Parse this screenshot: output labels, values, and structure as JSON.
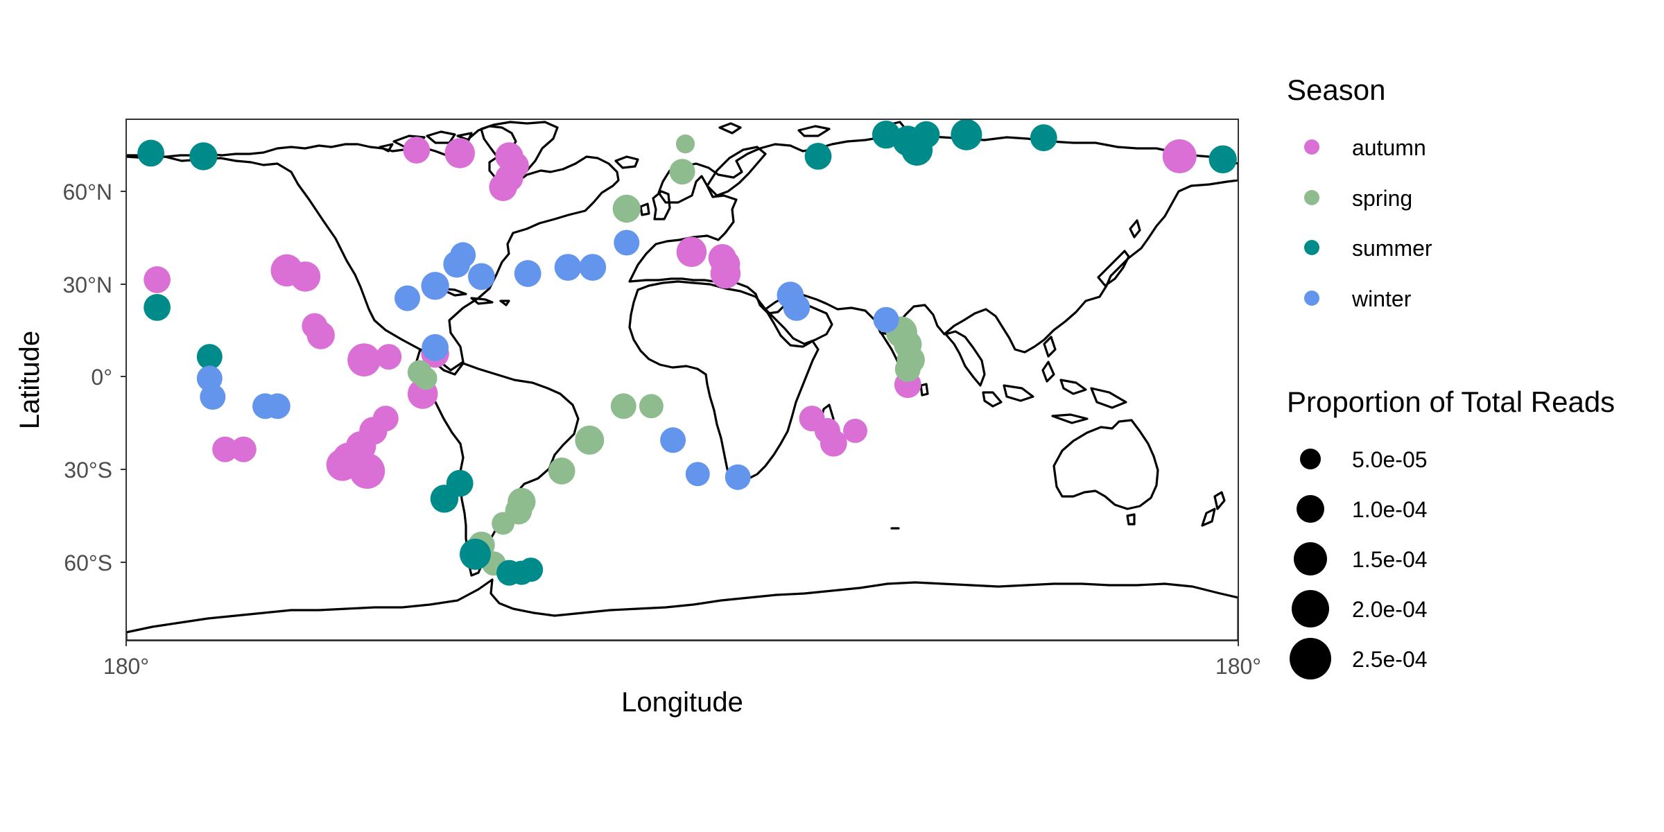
{
  "axes": {
    "xlabel": "Longitude",
    "ylabel": "Latitude",
    "x_ticks": [
      {
        "lon": -180,
        "label": "180°"
      },
      {
        "lon": 180,
        "label": "180°"
      }
    ],
    "y_ticks": [
      {
        "lat": 60,
        "label": "60°N"
      },
      {
        "lat": 30,
        "label": "30°N"
      },
      {
        "lat": 0,
        "label": "0°"
      },
      {
        "lat": -30,
        "label": "30°S"
      },
      {
        "lat": -60,
        "label": "60°S"
      }
    ],
    "xlim": [
      -180,
      180
    ],
    "ylim": [
      -85,
      84
    ]
  },
  "legend": {
    "color_title": "Season",
    "size_title": "Proportion of Total Reads",
    "seasons": [
      {
        "key": "autumn",
        "label": "autumn",
        "color": "#DA70D6"
      },
      {
        "key": "spring",
        "label": "spring",
        "color": "#8FBC8F"
      },
      {
        "key": "summer",
        "label": "summer",
        "color": "#008B8B"
      },
      {
        "key": "winter",
        "label": "winter",
        "color": "#6495ED"
      }
    ],
    "sizes": [
      {
        "value": 5e-05,
        "label": "5.0e-05"
      },
      {
        "value": 0.0001,
        "label": "1.0e-04"
      },
      {
        "value": 0.00015,
        "label": "1.5e-04"
      },
      {
        "value": 0.0002,
        "label": "2.0e-04"
      },
      {
        "value": 0.00025,
        "label": "2.5e-04"
      }
    ],
    "point_color": "#000000"
  },
  "chart_data": {
    "type": "scatter",
    "xlabel": "Longitude",
    "ylabel": "Latitude",
    "xlim": [
      -180,
      180
    ],
    "ylim": [
      -85,
      84
    ],
    "grid": false,
    "legend_position": "right",
    "basemap": "world coastline outline",
    "points": [
      {
        "lon": -170,
        "lat": 32,
        "season": "autumn",
        "reads": 7e-05
      },
      {
        "lon": -128,
        "lat": 35,
        "season": "autumn",
        "reads": 0.00012
      },
      {
        "lon": -122,
        "lat": 33,
        "season": "autumn",
        "reads": 0.0001
      },
      {
        "lon": -119,
        "lat": 17,
        "season": "autumn",
        "reads": 6e-05
      },
      {
        "lon": -117,
        "lat": 14,
        "season": "autumn",
        "reads": 8e-05
      },
      {
        "lon": -103,
        "lat": 6,
        "season": "autumn",
        "reads": 0.00013
      },
      {
        "lon": -95,
        "lat": 7,
        "season": "autumn",
        "reads": 6e-05
      },
      {
        "lon": -80,
        "lat": 8,
        "season": "autumn",
        "reads": 8e-05
      },
      {
        "lon": -84,
        "lat": -5,
        "season": "autumn",
        "reads": 0.0001
      },
      {
        "lon": -96,
        "lat": -13,
        "season": "autumn",
        "reads": 6e-05
      },
      {
        "lon": -100,
        "lat": -17,
        "season": "autumn",
        "reads": 8e-05
      },
      {
        "lon": -104,
        "lat": -22,
        "season": "autumn",
        "reads": 0.0001
      },
      {
        "lon": -108,
        "lat": -26,
        "season": "autumn",
        "reads": 0.00012
      },
      {
        "lon": -102,
        "lat": -30,
        "season": "autumn",
        "reads": 0.00016
      },
      {
        "lon": -110,
        "lat": -28,
        "season": "autumn",
        "reads": 0.00012
      },
      {
        "lon": -148,
        "lat": -23,
        "season": "autumn",
        "reads": 6e-05
      },
      {
        "lon": -142,
        "lat": -23,
        "season": "autumn",
        "reads": 6e-05
      },
      {
        "lon": -86,
        "lat": 74,
        "season": "autumn",
        "reads": 7e-05
      },
      {
        "lon": -72,
        "lat": 73,
        "season": "autumn",
        "reads": 0.0001
      },
      {
        "lon": -56,
        "lat": 72,
        "season": "autumn",
        "reads": 8e-05
      },
      {
        "lon": -54,
        "lat": 69,
        "season": "autumn",
        "reads": 7e-05
      },
      {
        "lon": -56,
        "lat": 65,
        "season": "autumn",
        "reads": 8e-05
      },
      {
        "lon": -58,
        "lat": 62,
        "season": "autumn",
        "reads": 8e-05
      },
      {
        "lon": 3,
        "lat": 41,
        "season": "autumn",
        "reads": 0.0001
      },
      {
        "lon": 13,
        "lat": 39,
        "season": "autumn",
        "reads": 8e-05
      },
      {
        "lon": 14,
        "lat": 37,
        "season": "autumn",
        "reads": 9e-05
      },
      {
        "lon": 14,
        "lat": 34,
        "season": "autumn",
        "reads": 0.0001
      },
      {
        "lon": 42,
        "lat": -13,
        "season": "autumn",
        "reads": 6e-05
      },
      {
        "lon": 47,
        "lat": -17,
        "season": "autumn",
        "reads": 6e-05
      },
      {
        "lon": 56,
        "lat": -17,
        "season": "autumn",
        "reads": 5e-05
      },
      {
        "lon": 49,
        "lat": -21,
        "season": "autumn",
        "reads": 7e-05
      },
      {
        "lon": 73,
        "lat": -2,
        "season": "autumn",
        "reads": 7e-05
      },
      {
        "lon": 161,
        "lat": 72,
        "season": "autumn",
        "reads": 0.00014
      },
      {
        "lon": -85,
        "lat": 2,
        "season": "spring",
        "reads": 5e-05
      },
      {
        "lon": -83,
        "lat": 0,
        "season": "spring",
        "reads": 4e-05
      },
      {
        "lon": -30,
        "lat": -20,
        "season": "spring",
        "reads": 9e-05
      },
      {
        "lon": -39,
        "lat": -30,
        "season": "spring",
        "reads": 7e-05
      },
      {
        "lon": -52,
        "lat": -40,
        "season": "spring",
        "reads": 8e-05
      },
      {
        "lon": -53,
        "lat": -43,
        "season": "spring",
        "reads": 7e-05
      },
      {
        "lon": -58,
        "lat": -47,
        "season": "spring",
        "reads": 4e-05
      },
      {
        "lon": -65,
        "lat": -54,
        "season": "spring",
        "reads": 7e-05
      },
      {
        "lon": -61,
        "lat": -60,
        "season": "spring",
        "reads": 5e-05
      },
      {
        "lon": -18,
        "lat": 55,
        "season": "spring",
        "reads": 8e-05
      },
      {
        "lon": 0,
        "lat": 67,
        "season": "spring",
        "reads": 6e-05
      },
      {
        "lon": 1,
        "lat": 76,
        "season": "spring",
        "reads": 2e-05
      },
      {
        "lon": -19,
        "lat": -9,
        "season": "spring",
        "reads": 6e-05
      },
      {
        "lon": -10,
        "lat": -9,
        "season": "spring",
        "reads": 5e-05
      },
      {
        "lon": 71,
        "lat": 15,
        "season": "spring",
        "reads": 0.00011
      },
      {
        "lon": 73,
        "lat": 11,
        "season": "spring",
        "reads": 8e-05
      },
      {
        "lon": 74,
        "lat": 6,
        "season": "spring",
        "reads": 8e-05
      },
      {
        "lon": 73,
        "lat": 3,
        "season": "spring",
        "reads": 6e-05
      },
      {
        "lon": -172,
        "lat": 73,
        "season": "summer",
        "reads": 7e-05
      },
      {
        "lon": -155,
        "lat": 72,
        "season": "summer",
        "reads": 8e-05
      },
      {
        "lon": -170,
        "lat": 23,
        "season": "summer",
        "reads": 7e-05
      },
      {
        "lon": -153,
        "lat": 7,
        "season": "summer",
        "reads": 6e-05
      },
      {
        "lon": -77,
        "lat": -39,
        "season": "summer",
        "reads": 8e-05
      },
      {
        "lon": -72,
        "lat": -34,
        "season": "summer",
        "reads": 7e-05
      },
      {
        "lon": -67,
        "lat": -57,
        "season": "summer",
        "reads": 0.00011
      },
      {
        "lon": -56,
        "lat": -63,
        "season": "summer",
        "reads": 6e-05
      },
      {
        "lon": -52,
        "lat": -63,
        "season": "summer",
        "reads": 5e-05
      },
      {
        "lon": -49,
        "lat": -62,
        "season": "summer",
        "reads": 5e-05
      },
      {
        "lon": 44,
        "lat": 72,
        "season": "summer",
        "reads": 7e-05
      },
      {
        "lon": 66,
        "lat": 79,
        "season": "summer",
        "reads": 8e-05
      },
      {
        "lon": 73,
        "lat": 77,
        "season": "summer",
        "reads": 0.0001
      },
      {
        "lon": 76,
        "lat": 74,
        "season": "summer",
        "reads": 0.00011
      },
      {
        "lon": 79,
        "lat": 79,
        "season": "summer",
        "reads": 7e-05
      },
      {
        "lon": 92,
        "lat": 79,
        "season": "summer",
        "reads": 0.00011
      },
      {
        "lon": 117,
        "lat": 78,
        "season": "summer",
        "reads": 7e-05
      },
      {
        "lon": 175,
        "lat": 71,
        "season": "summer",
        "reads": 8e-05
      },
      {
        "lon": -89,
        "lat": 26,
        "season": "winter",
        "reads": 6e-05
      },
      {
        "lon": -80,
        "lat": 30,
        "season": "winter",
        "reads": 8e-05
      },
      {
        "lon": -73,
        "lat": 37,
        "season": "winter",
        "reads": 7e-05
      },
      {
        "lon": -71,
        "lat": 40,
        "season": "winter",
        "reads": 6e-05
      },
      {
        "lon": -65,
        "lat": 33,
        "season": "winter",
        "reads": 7e-05
      },
      {
        "lon": -50,
        "lat": 34,
        "season": "winter",
        "reads": 7e-05
      },
      {
        "lon": -37,
        "lat": 36,
        "season": "winter",
        "reads": 7e-05
      },
      {
        "lon": -29,
        "lat": 36,
        "season": "winter",
        "reads": 7e-05
      },
      {
        "lon": -18,
        "lat": 44,
        "season": "winter",
        "reads": 6e-05
      },
      {
        "lon": -80,
        "lat": 10,
        "season": "winter",
        "reads": 7e-05
      },
      {
        "lon": -153,
        "lat": 0,
        "season": "winter",
        "reads": 6e-05
      },
      {
        "lon": -152,
        "lat": -6,
        "season": "winter",
        "reads": 6e-05
      },
      {
        "lon": -135,
        "lat": -9,
        "season": "winter",
        "reads": 6e-05
      },
      {
        "lon": -131,
        "lat": -9,
        "season": "winter",
        "reads": 6e-05
      },
      {
        "lon": -3,
        "lat": -20,
        "season": "winter",
        "reads": 6e-05
      },
      {
        "lon": 5,
        "lat": -31,
        "season": "winter",
        "reads": 5e-05
      },
      {
        "lon": 18,
        "lat": -32,
        "season": "winter",
        "reads": 6e-05
      },
      {
        "lon": 35,
        "lat": 27,
        "season": "winter",
        "reads": 7e-05
      },
      {
        "lon": 37,
        "lat": 23,
        "season": "winter",
        "reads": 7e-05
      },
      {
        "lon": 66,
        "lat": 19,
        "season": "winter",
        "reads": 6e-05
      }
    ]
  }
}
